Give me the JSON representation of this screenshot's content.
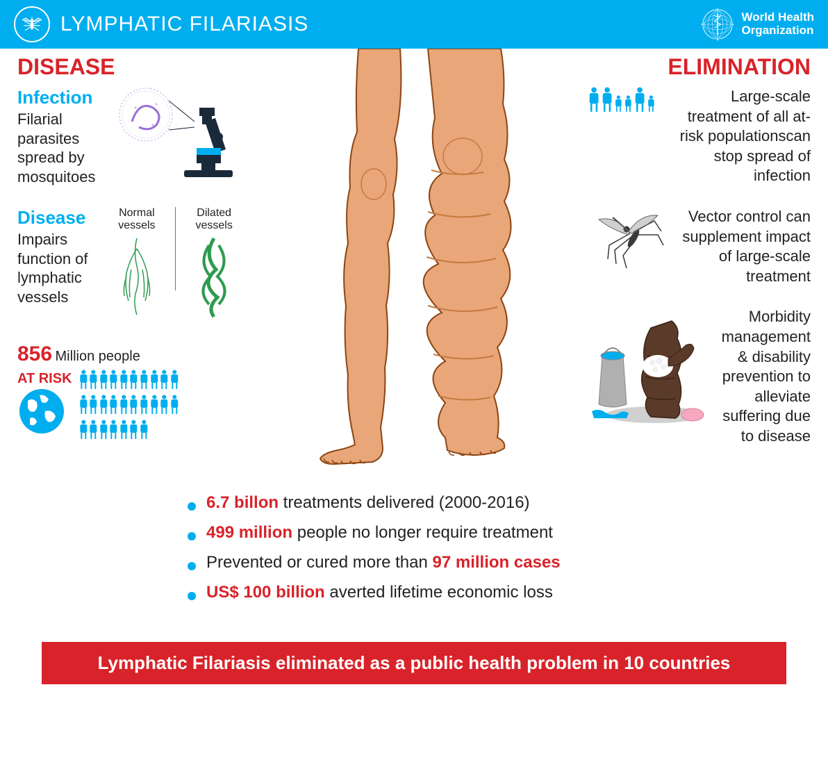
{
  "header": {
    "title": "LYMPHATIC FILARIASIS",
    "org_line1": "World Health",
    "org_line2": "Organization"
  },
  "colors": {
    "primary_blue": "#00aeef",
    "red": "#d8232a",
    "text": "#222222",
    "green": "#2e9b4f",
    "skin": "#e8a679",
    "skin_shadow": "#d68a56",
    "dark_skin": "#5a3a28"
  },
  "disease": {
    "title": "DISEASE",
    "infection": {
      "title": "Infection",
      "text": "Filarial parasites spread by mosquitoes"
    },
    "disease_block": {
      "title": "Disease",
      "text": "Impairs function of lymphatic vessels",
      "normal_label": "Normal vessels",
      "dilated_label": "Dilated vessels"
    },
    "risk": {
      "number": "856",
      "million": " Million people",
      "label": "AT RISK",
      "people_rows": [
        10,
        10,
        7
      ]
    }
  },
  "elimination": {
    "title": "ELIMINATION",
    "item1": "Large-scale treatment of all at-risk populationscan stop spread of infection",
    "item2": "Vector control can supplement impact of large-scale treatment",
    "item3": "Morbidity management & disability prevention to alleviate suffering due to disease"
  },
  "bullets": [
    {
      "red": "6.7 billon",
      "black": " treatments delivered (2000-2016)",
      "redFirst": true
    },
    {
      "red": "499 million",
      "black": " people no longer require treatment",
      "redFirst": true
    },
    {
      "black": "Prevented or cured more than ",
      "red": "97 million cases",
      "redFirst": false
    },
    {
      "red": "US$ 100 billion",
      "black": " averted lifetime economic loss",
      "redFirst": true
    }
  ],
  "footer": "Lymphatic Filariasis eliminated as a public health problem in 10 countries"
}
